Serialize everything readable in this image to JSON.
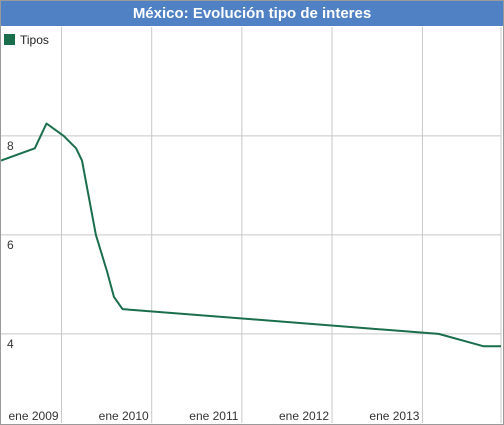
{
  "chart_data": {
    "type": "line",
    "title": "México: Evolución tipo de interes",
    "xlabel": "",
    "ylabel": "",
    "x_tick_labels": [
      "ene 2009",
      "ene 2010",
      "ene 2011",
      "ene 2012",
      "ene 2013"
    ],
    "y_tick_labels": [
      "8",
      "6",
      "4"
    ],
    "y_ticks": [
      8,
      6,
      4
    ],
    "ylim": [
      2.2,
      10.2
    ],
    "xlim": [
      "2008-05-01",
      "2013-11-15"
    ],
    "grid": true,
    "legend": {
      "position": "top-left",
      "entries": [
        "Tipos"
      ]
    },
    "series": [
      {
        "name": "Tipos",
        "color": "#1b6e4c",
        "points": [
          [
            "2008-05-01",
            7.5
          ],
          [
            "2008-09-15",
            7.75
          ],
          [
            "2008-11-01",
            8.25
          ],
          [
            "2009-01-10",
            8.0
          ],
          [
            "2009-03-01",
            7.75
          ],
          [
            "2009-03-25",
            7.5
          ],
          [
            "2009-05-20",
            6.0
          ],
          [
            "2009-07-05",
            5.25
          ],
          [
            "2009-08-01",
            4.75
          ],
          [
            "2009-09-05",
            4.5
          ],
          [
            "2013-03-08",
            4.0
          ],
          [
            "2013-09-06",
            3.75
          ],
          [
            "2013-11-15",
            3.75
          ]
        ]
      }
    ]
  }
}
